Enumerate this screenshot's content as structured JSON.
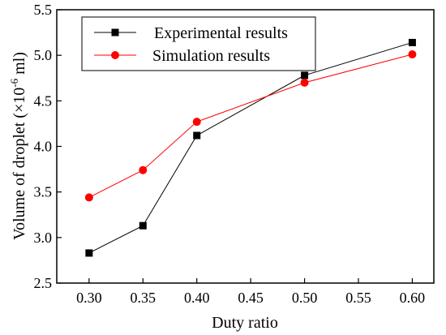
{
  "chart_data": {
    "type": "line",
    "xlabel": "Duty ratio",
    "ylabel": "Volume of droplet (×10",
    "ylabel_sup": "-6",
    "ylabel_unit": " ml)",
    "xlim": [
      0.27,
      0.62
    ],
    "ylim": [
      2.5,
      5.5
    ],
    "xticks": [
      0.3,
      0.35,
      0.4,
      0.45,
      0.5,
      0.55,
      0.6
    ],
    "xtick_labels": [
      "0.30",
      "0.35",
      "0.40",
      "0.45",
      "0.50",
      "0.55",
      "0.60"
    ],
    "yticks": [
      2.5,
      3.0,
      3.5,
      4.0,
      4.5,
      5.0,
      5.5
    ],
    "ytick_labels": [
      "2.5",
      "3.0",
      "3.5",
      "4.0",
      "4.5",
      "5.0",
      "5.5"
    ],
    "legend_position": "top-left",
    "grid": false,
    "series": [
      {
        "name": "Experimental results",
        "marker": "square",
        "color": "#000000",
        "x": [
          0.3,
          0.35,
          0.4,
          0.5,
          0.6
        ],
        "y": [
          2.83,
          3.13,
          4.12,
          4.78,
          5.14
        ]
      },
      {
        "name": "Simulation results",
        "marker": "circle",
        "color": "#ff0000",
        "x": [
          0.3,
          0.35,
          0.4,
          0.5,
          0.6
        ],
        "y": [
          3.44,
          3.74,
          4.27,
          4.7,
          5.01
        ]
      }
    ]
  }
}
